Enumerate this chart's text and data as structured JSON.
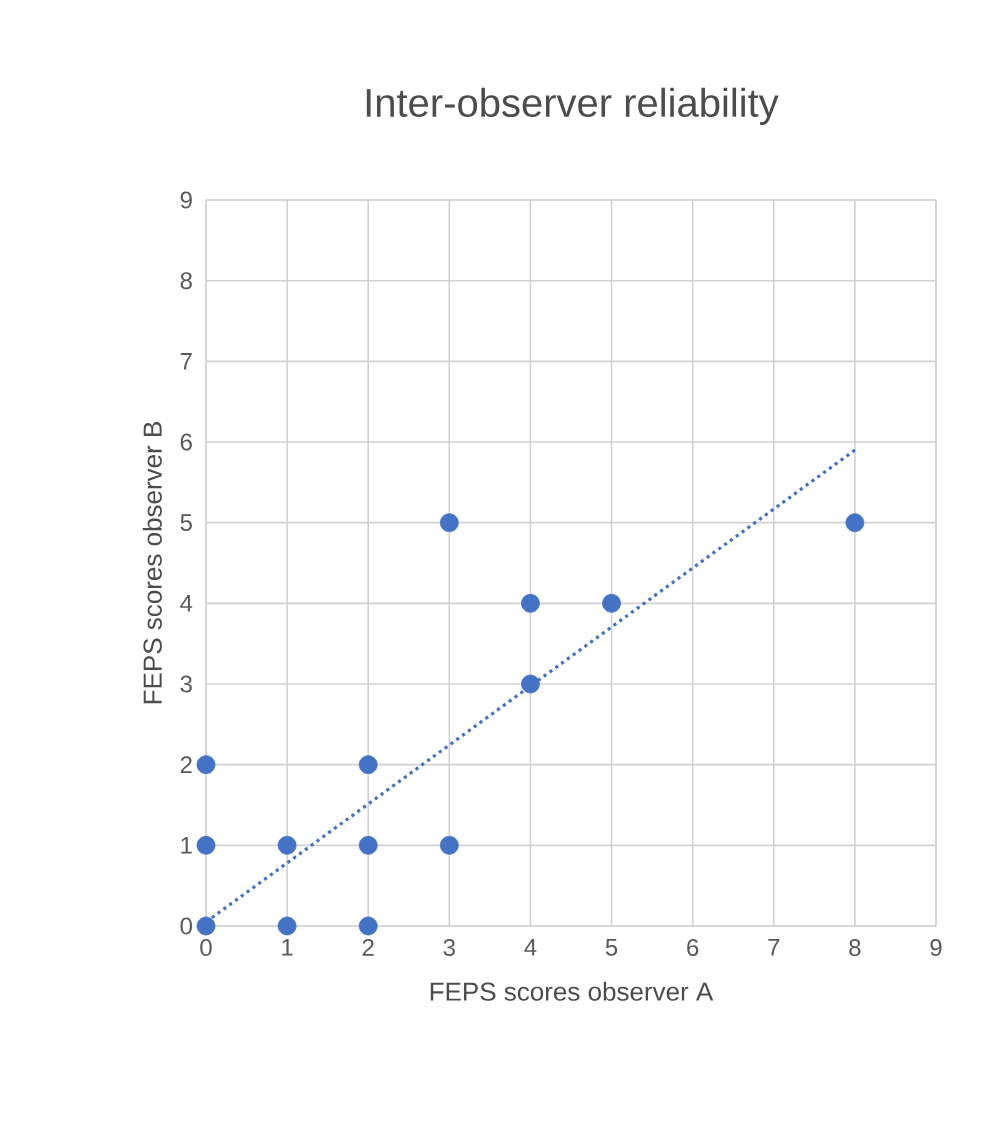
{
  "chart_data": {
    "type": "scatter",
    "title": "Inter-observer reliability",
    "xlabel": "FEPS scores observer A",
    "ylabel": "FEPS scores observer B",
    "xlim": [
      0,
      9
    ],
    "ylim": [
      0,
      9
    ],
    "xticks": [
      0,
      1,
      2,
      3,
      4,
      5,
      6,
      7,
      8,
      9
    ],
    "yticks": [
      0,
      1,
      2,
      3,
      4,
      5,
      6,
      7,
      8,
      9
    ],
    "grid": true,
    "marker": "circle",
    "series": [
      {
        "color": "#4472c4",
        "x": [
          0,
          0,
          0,
          1,
          1,
          2,
          2,
          2,
          3,
          3,
          4,
          4,
          5,
          8
        ],
        "values": [
          0,
          1,
          2,
          0,
          1,
          0,
          1,
          2,
          1,
          5,
          3,
          4,
          4,
          5
        ]
      },
      {
        "type": "line",
        "color": "#4472c4",
        "line_style": "dotted",
        "marker": "none",
        "x": [
          0,
          8
        ],
        "values": [
          0.05,
          5.9
        ]
      }
    ]
  }
}
